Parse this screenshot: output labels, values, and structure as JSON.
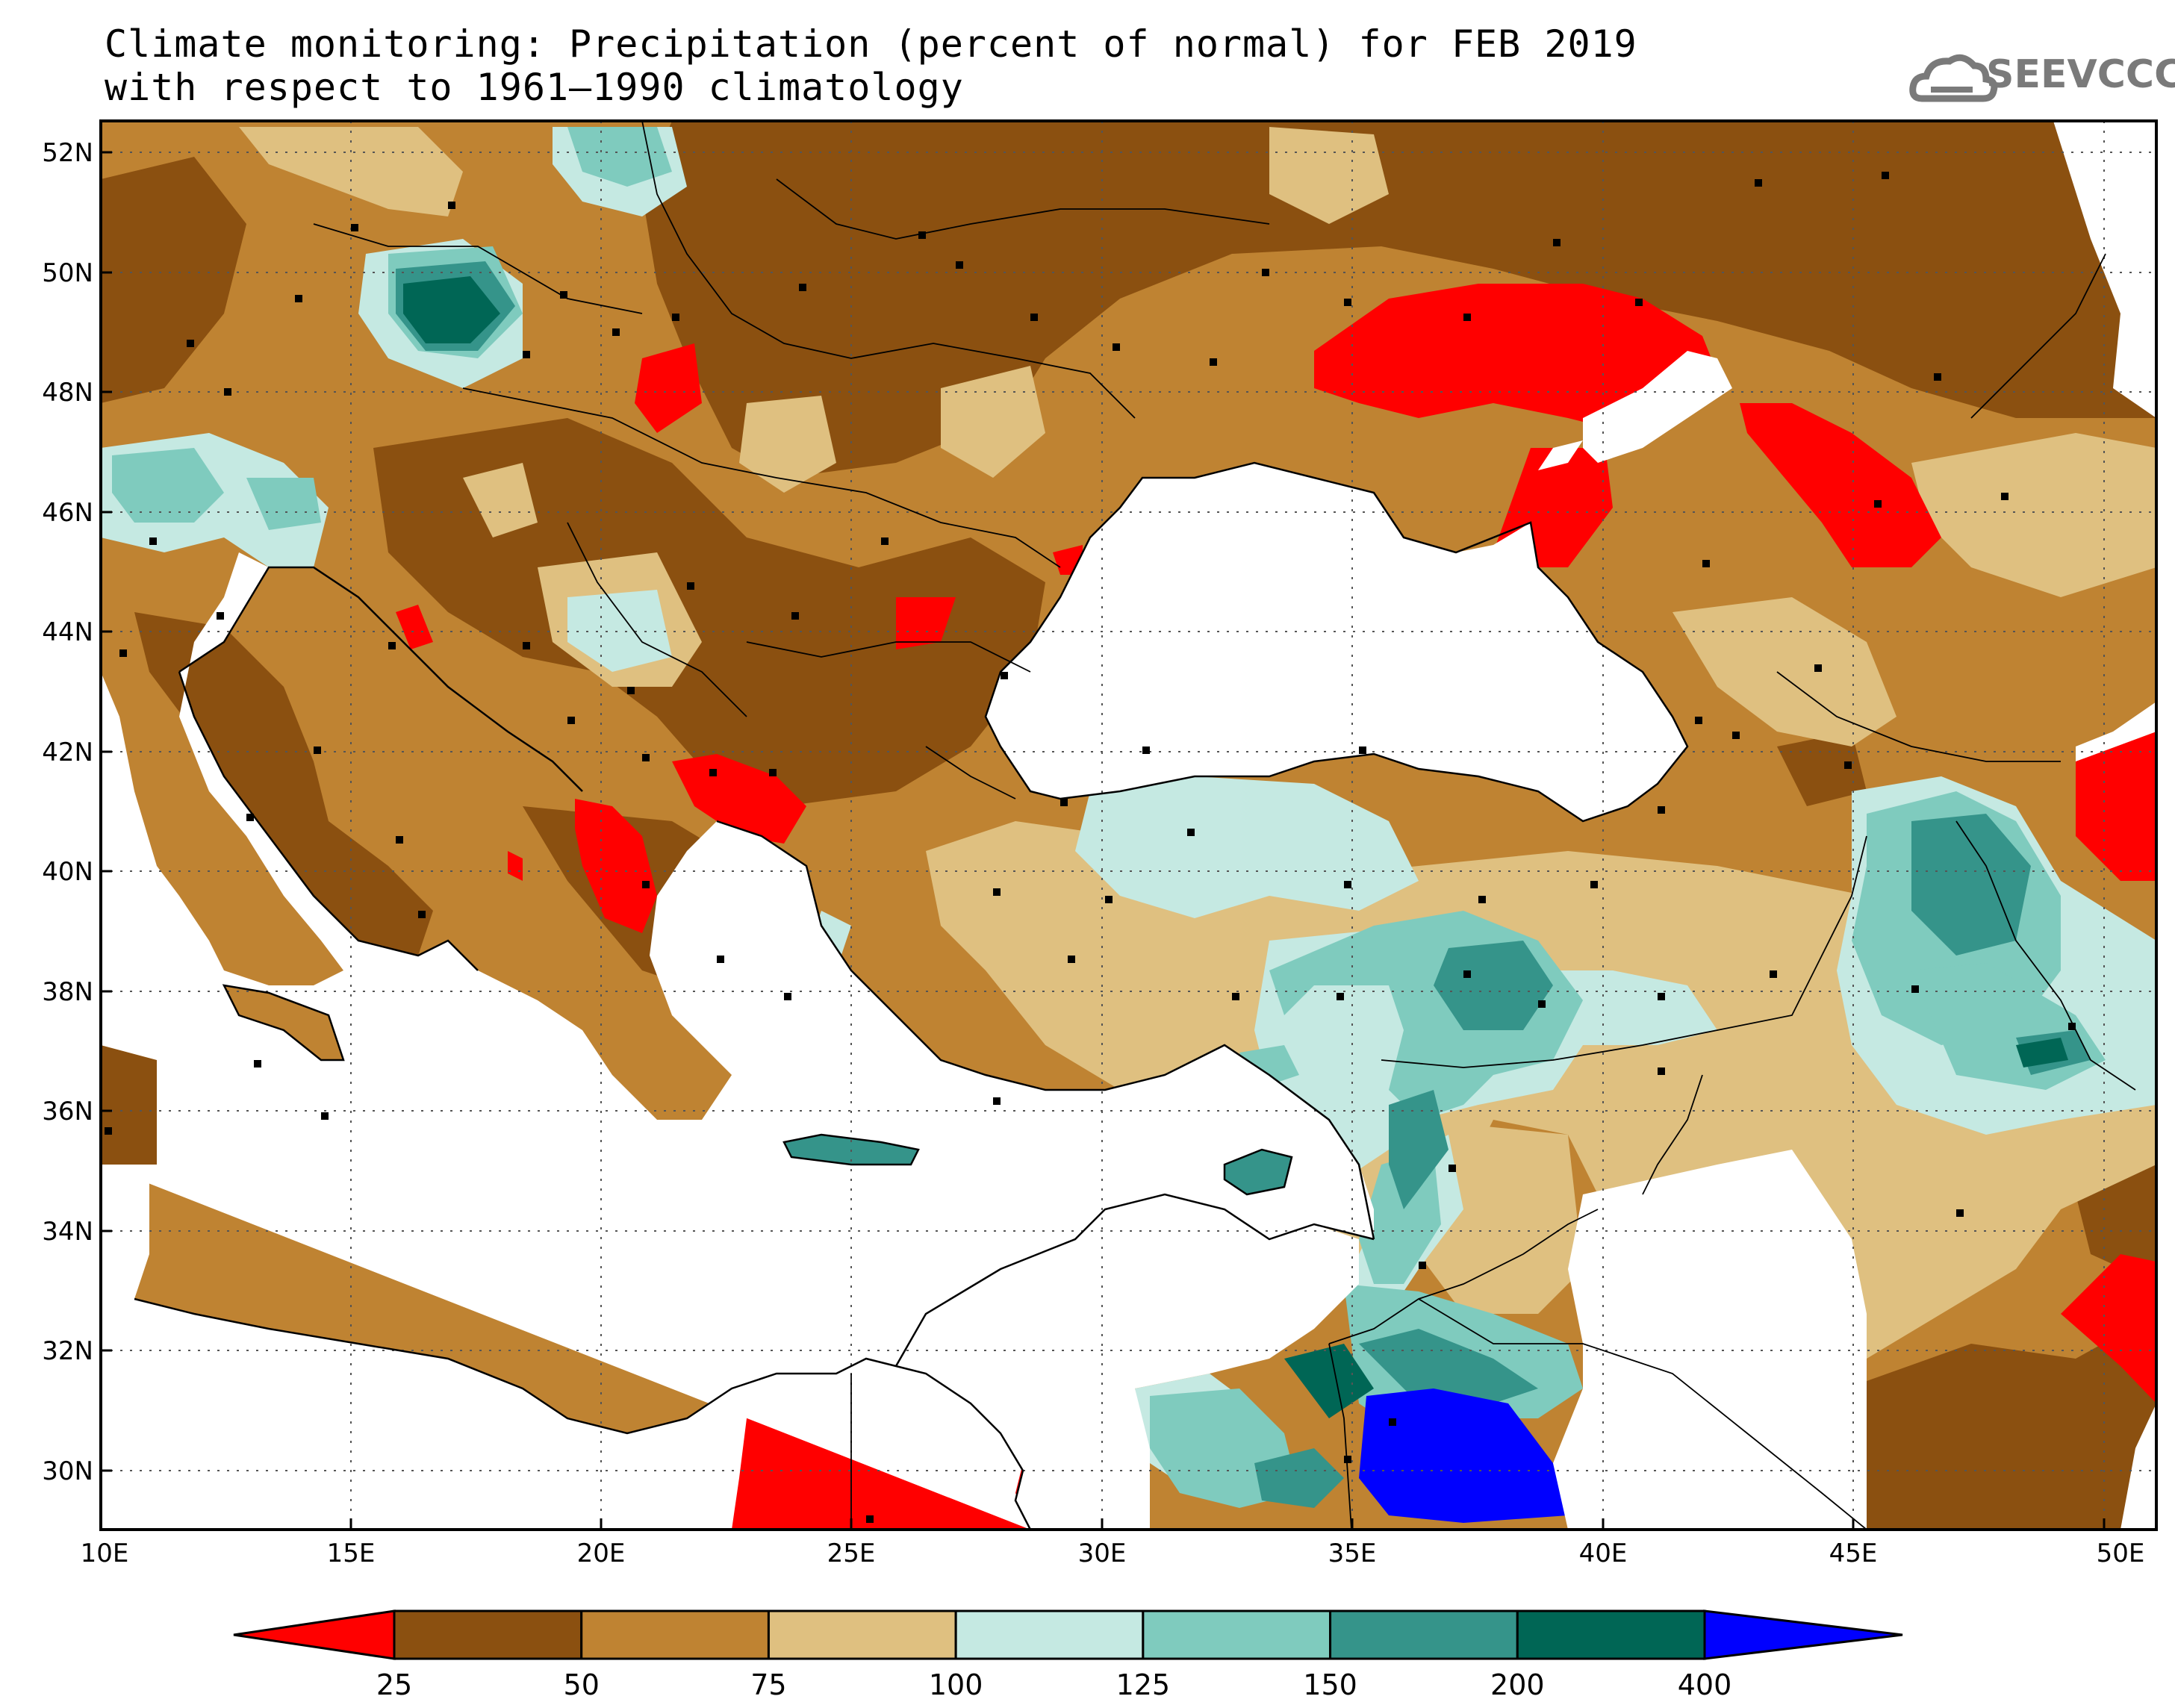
{
  "title": {
    "line1": "Climate monitoring: Precipitation (percent of normal) for FEB 2019",
    "line2": "with respect to 1961–1990 climatology"
  },
  "logo": {
    "text": "SEEVCCC",
    "icon": "cloud-icon"
  },
  "map": {
    "lon_ticks": [
      "10E",
      "15E",
      "20E",
      "25E",
      "30E",
      "35E",
      "40E",
      "45E",
      "50E"
    ],
    "lat_ticks": [
      "52N",
      "50N",
      "48N",
      "46N",
      "44N",
      "42N",
      "40N",
      "38N",
      "36N",
      "34N",
      "32N",
      "30N"
    ],
    "lon_range": [
      10,
      51
    ],
    "lat_range": [
      29,
      52.5
    ],
    "grid": "dotted"
  },
  "colorbar": {
    "labels": [
      "25",
      "50",
      "75",
      "100",
      "125",
      "150",
      "200",
      "400"
    ],
    "colors": [
      "#ff0000",
      "#8b5010",
      "#bf8332",
      "#dfc080",
      "#c5e9e2",
      "#7fcbbe",
      "#35948a",
      "#006655",
      "#0000ff"
    ]
  }
}
